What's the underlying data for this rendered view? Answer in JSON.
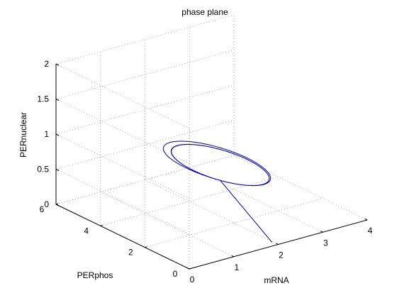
{
  "chart_data": {
    "type": "line",
    "projection": "3d",
    "title": "phase plane",
    "xlabel": "mRNA",
    "ylabel": "PERphos",
    "zlabel": "PERnuclear",
    "xlim": [
      0,
      4
    ],
    "ylim": [
      0,
      6
    ],
    "zlim": [
      0,
      2
    ],
    "xticks": [
      "0",
      "1",
      "2",
      "3",
      "4"
    ],
    "yticks": [
      "0",
      "2",
      "4",
      "6"
    ],
    "zticks": [
      "0",
      "0.5",
      "1",
      "1.5",
      "2"
    ],
    "grid": true,
    "line_color": "#0000aa",
    "series": [
      {
        "transient": {
          "start": [
            1.89,
            0.06,
            0.04
          ],
          "base": [
            1.92,
            2.45,
            0.55
          ],
          "radius": [
            1.2,
            2.2,
            0.58
          ],
          "spiral_in_rate": 0.55
        },
        "limit_cycle": {
          "center": [
            1.92,
            2.45,
            0.55
          ],
          "radius": [
            0.86,
            1.6,
            0.44
          ],
          "loops": 1.6
        }
      }
    ]
  }
}
